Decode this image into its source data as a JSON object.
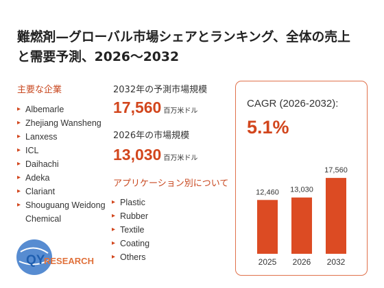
{
  "title": "難燃剤—グローバル市場シェアとランキング、全体の売上と需要予測、2026～2032",
  "companies": {
    "heading": "主要な企業",
    "items": [
      "Albemarle",
      "Zhejiang Wansheng",
      "Lanxess",
      "ICL",
      "Daihachi",
      "Adeka",
      "Clariant",
      "Shouguang Weidong Chemical"
    ]
  },
  "market": {
    "forecast_label": "2032年の予測市場規模",
    "forecast_value": "17,560",
    "forecast_unit": "百万米ドル",
    "current_label": "2026年の市場規模",
    "current_value": "13,030",
    "current_unit": "百万米ドル"
  },
  "applications": {
    "heading": "アプリケーション別について",
    "items": [
      "Plastic",
      "Rubber",
      "Textile",
      "Coating",
      "Others"
    ]
  },
  "cagr": {
    "label": "CAGR (2026-2032):",
    "value": "5.1%"
  },
  "logo": {
    "prefix": "QY",
    "suffix": "RESEARCH"
  },
  "chart_data": {
    "type": "bar",
    "categories": [
      "2025",
      "2026",
      "2032"
    ],
    "values": [
      12460,
      13030,
      17560
    ],
    "value_labels": [
      "12,460",
      "13,030",
      "17,560"
    ],
    "color": "#dc4b23",
    "ylim": [
      0,
      19000
    ]
  }
}
